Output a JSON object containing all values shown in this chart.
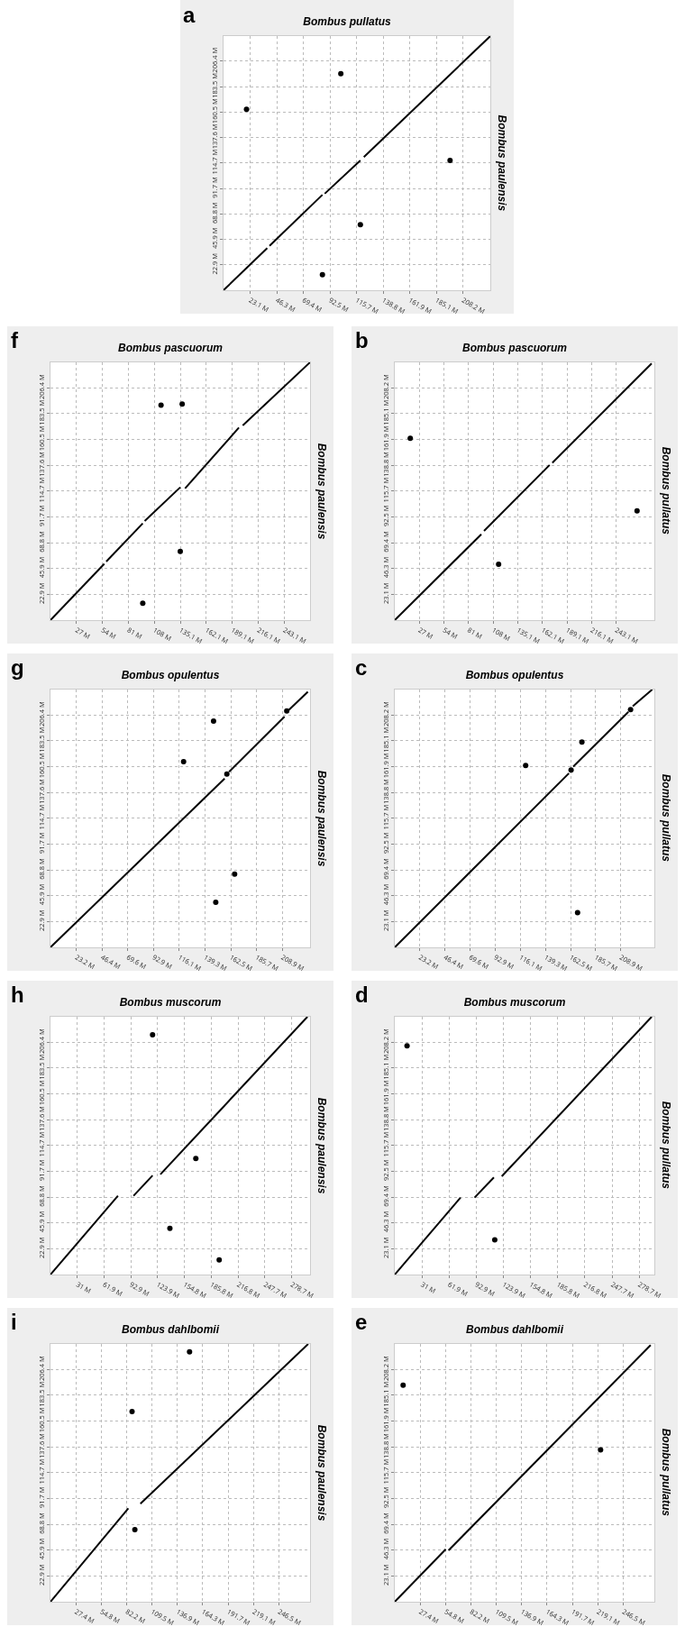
{
  "chart_data": [
    {
      "type": "line",
      "title": "Bombus pullatus",
      "ylabel": "Bombus paulensis",
      "annotations": [
        "a"
      ],
      "grid": true,
      "line_style": "solid",
      "xlim": [
        0,
        232
      ],
      "ylim": [
        0,
        229
      ],
      "xticks": [
        {
          "value": 23.1,
          "label": "23.1 M"
        },
        {
          "value": 46.3,
          "label": "46.3 M"
        },
        {
          "value": 69.4,
          "label": "69.4 M"
        },
        {
          "value": 92.5,
          "label": "92.5 M"
        },
        {
          "value": 115.7,
          "label": "115.7 M"
        },
        {
          "value": 138.8,
          "label": "138.8 M"
        },
        {
          "value": 161.9,
          "label": "161.9 M"
        },
        {
          "value": 185.1,
          "label": "185.1 M"
        },
        {
          "value": 208.2,
          "label": "208.2 M"
        }
      ],
      "yticks": [
        {
          "value": 22.9,
          "label": "22.9 M"
        },
        {
          "value": 45.9,
          "label": "45.9 M"
        },
        {
          "value": 68.8,
          "label": "68.8 M"
        },
        {
          "value": 91.7,
          "label": "91.7 M"
        },
        {
          "value": 114.7,
          "label": "114.7 M"
        },
        {
          "value": 137.6,
          "label": "137.6 M"
        },
        {
          "value": 160.5,
          "label": "160.5 M"
        },
        {
          "value": 183.5,
          "label": "183.5 M"
        },
        {
          "value": 206.4,
          "label": "206.4 M"
        }
      ],
      "series": [
        {
          "color": "#000000",
          "x": [
            0,
            38,
            38.5,
            40,
            86,
            86.5,
            88,
            119,
            120,
            122,
            232
          ],
          "values": [
            0,
            38,
            null,
            40,
            86,
            null,
            87,
            117,
            null,
            120,
            229
          ]
        },
        {
          "type": "scatter",
          "marker": "circle",
          "color": "#000000",
          "x": [
            102,
            20,
            119,
            197,
            86
          ],
          "values": [
            195,
            163,
            59,
            117,
            14
          ]
        }
      ]
    },
    {
      "type": "line",
      "title": "Bombus pascuorum",
      "ylabel": "Bombus paulensis",
      "annotations": [
        "f"
      ],
      "grid": true,
      "line_style": "solid",
      "xlim": [
        0,
        270
      ],
      "ylim": [
        0,
        229
      ],
      "xticks": [
        {
          "value": 27,
          "label": "27 M"
        },
        {
          "value": 54,
          "label": "54 M"
        },
        {
          "value": 81,
          "label": "81 M"
        },
        {
          "value": 108,
          "label": "108 M"
        },
        {
          "value": 135.1,
          "label": "135.1 M"
        },
        {
          "value": 162.1,
          "label": "162.1 M"
        },
        {
          "value": 189.1,
          "label": "189.1 M"
        },
        {
          "value": 216.1,
          "label": "216.1 M"
        },
        {
          "value": 243.1,
          "label": "243.1 M"
        }
      ],
      "yticks": [
        {
          "value": 22.9,
          "label": "22.9 M"
        },
        {
          "value": 45.9,
          "label": "45.9 M"
        },
        {
          "value": 68.8,
          "label": "68.8 M"
        },
        {
          "value": 91.7,
          "label": "91.7 M"
        },
        {
          "value": 114.7,
          "label": "114.7 M"
        },
        {
          "value": 137.6,
          "label": "137.6 M"
        },
        {
          "value": 160.5,
          "label": "160.5 M"
        },
        {
          "value": 183.5,
          "label": "183.5 M"
        },
        {
          "value": 206.4,
          "label": "206.4 M"
        }
      ],
      "series": [
        {
          "color": "#000000",
          "x": [
            0,
            56,
            57,
            58,
            96,
            97,
            98,
            135,
            136,
            140,
            196,
            197,
            200,
            270
          ],
          "values": [
            0,
            50,
            null,
            52,
            86,
            null,
            88,
            118,
            null,
            117,
            171,
            null,
            173,
            229
          ]
        },
        {
          "type": "scatter",
          "marker": "circle",
          "color": "#000000",
          "x": [
            115,
            137,
            135,
            96
          ],
          "values": [
            191,
            192,
            61,
            15
          ]
        }
      ]
    },
    {
      "type": "line",
      "title": "Bombus pascuorum",
      "ylabel": "Bombus pullatus",
      "annotations": [
        "b"
      ],
      "grid": true,
      "line_style": "solid",
      "xlim": [
        0,
        285
      ],
      "ylim": [
        0,
        231
      ],
      "xticks": [
        {
          "value": 27,
          "label": "27 M"
        },
        {
          "value": 54,
          "label": "54 M"
        },
        {
          "value": 81,
          "label": "81 M"
        },
        {
          "value": 108,
          "label": "108 M"
        },
        {
          "value": 135.1,
          "label": "135.1 M"
        },
        {
          "value": 162.1,
          "label": "162.1 M"
        },
        {
          "value": 189.1,
          "label": "189.1 M"
        },
        {
          "value": 216.1,
          "label": "216.1 M"
        },
        {
          "value": 243.1,
          "label": "243.1 M"
        }
      ],
      "yticks": [
        {
          "value": 23.1,
          "label": "23.1 M"
        },
        {
          "value": 46.3,
          "label": "46.3 M"
        },
        {
          "value": 69.4,
          "label": "69.4 M"
        },
        {
          "value": 92.5,
          "label": "92.5 M"
        },
        {
          "value": 115.7,
          "label": "115.7 M"
        },
        {
          "value": 138.8,
          "label": "138.8 M"
        },
        {
          "value": 161.9,
          "label": "161.9 M"
        },
        {
          "value": 185.1,
          "label": "185.1 M"
        },
        {
          "value": 208.2,
          "label": "208.2 M"
        }
      ],
      "series": [
        {
          "color": "#000000",
          "x": [
            0,
            95,
            96,
            98,
            170,
            171,
            173,
            282
          ],
          "values": [
            0,
            77,
            null,
            80,
            139,
            null,
            141,
            230
          ]
        },
        {
          "type": "scatter",
          "marker": "circle",
          "color": "#000000",
          "x": [
            17,
            114,
            266
          ],
          "values": [
            163,
            50,
            98
          ]
        }
      ]
    },
    {
      "type": "line",
      "title": "Bombus opulentus",
      "ylabel": "Bombus paulensis",
      "annotations": [
        "g"
      ],
      "grid": true,
      "line_style": "solid",
      "xlim": [
        0,
        234
      ],
      "ylim": [
        0,
        229
      ],
      "xticks": [
        {
          "value": 23.2,
          "label": "23.2 M"
        },
        {
          "value": 46.4,
          "label": "46.4 M"
        },
        {
          "value": 69.6,
          "label": "69.6 M"
        },
        {
          "value": 92.9,
          "label": "92.9 M"
        },
        {
          "value": 116.1,
          "label": "116.1 M"
        },
        {
          "value": 139.3,
          "label": "139.3 M"
        },
        {
          "value": 162.5,
          "label": "162.5 M"
        },
        {
          "value": 185.7,
          "label": "185.7 M"
        },
        {
          "value": 208.9,
          "label": "208.9 M"
        }
      ],
      "yticks": [
        {
          "value": 22.9,
          "label": "22.9 M"
        },
        {
          "value": 45.9,
          "label": "45.9 M"
        },
        {
          "value": 68.8,
          "label": "68.8 M"
        },
        {
          "value": 91.7,
          "label": "91.7 M"
        },
        {
          "value": 114.7,
          "label": "114.7 M"
        },
        {
          "value": 137.6,
          "label": "137.6 M"
        },
        {
          "value": 160.5,
          "label": "160.5 M"
        },
        {
          "value": 183.5,
          "label": "183.5 M"
        },
        {
          "value": 206.4,
          "label": "206.4 M"
        }
      ],
      "series": [
        {
          "color": "#000000",
          "x": [
            0,
            157,
            158,
            161,
            211,
            212,
            215,
            232
          ],
          "values": [
            0,
            150,
            null,
            156,
            205,
            null,
            211,
            227
          ]
        },
        {
          "type": "scatter",
          "marker": "circle",
          "color": "#000000",
          "x": [
            147,
            120,
            166,
            149,
            213,
            159
          ],
          "values": [
            201,
            165,
            65,
            40,
            210,
            154
          ]
        }
      ]
    },
    {
      "type": "line",
      "title": "Bombus opulentus",
      "ylabel": "Bombus pullatus",
      "annotations": [
        "c"
      ],
      "grid": true,
      "line_style": "solid",
      "xlim": [
        0,
        240
      ],
      "ylim": [
        0,
        231
      ],
      "xticks": [
        {
          "value": 23.2,
          "label": "23.2 M"
        },
        {
          "value": 46.4,
          "label": "46.4 M"
        },
        {
          "value": 69.6,
          "label": "69.6 M"
        },
        {
          "value": 92.9,
          "label": "92.9 M"
        },
        {
          "value": 116.1,
          "label": "116.1 M"
        },
        {
          "value": 139.3,
          "label": "139.3 M"
        },
        {
          "value": 162.5,
          "label": "162.5 M"
        },
        {
          "value": 185.7,
          "label": "185.7 M"
        },
        {
          "value": 208.9,
          "label": "208.9 M"
        }
      ],
      "yticks": [
        {
          "value": 23.1,
          "label": "23.1 M"
        },
        {
          "value": 46.3,
          "label": "46.3 M"
        },
        {
          "value": 69.4,
          "label": "69.4 M"
        },
        {
          "value": 92.5,
          "label": "92.5 M"
        },
        {
          "value": 115.7,
          "label": "115.7 M"
        },
        {
          "value": 138.8,
          "label": "138.8 M"
        },
        {
          "value": 161.9,
          "label": "161.9 M"
        },
        {
          "value": 185.1,
          "label": "185.1 M"
        },
        {
          "value": 208.2,
          "label": "208.2 M"
        }
      ],
      "series": [
        {
          "color": "#000000",
          "x": [
            0,
            161,
            162,
            165,
            216,
            217,
            220,
            238
          ],
          "values": [
            0,
            156,
            null,
            162,
            211,
            null,
            216,
            231
          ]
        },
        {
          "type": "scatter",
          "marker": "circle",
          "color": "#000000",
          "x": [
            173,
            121,
            169,
            218,
            163
          ],
          "values": [
            184,
            163,
            31,
            213,
            159
          ]
        }
      ]
    },
    {
      "type": "line",
      "title": "Bombus muscorum",
      "ylabel": "Bombus paulensis",
      "annotations": [
        "h"
      ],
      "grid": true,
      "line_style": "solid",
      "xlim": [
        0,
        300
      ],
      "ylim": [
        0,
        229
      ],
      "xticks": [
        {
          "value": 31,
          "label": "31 M"
        },
        {
          "value": 61.9,
          "label": "61.9 M"
        },
        {
          "value": 92.9,
          "label": "92.9 M"
        },
        {
          "value": 123.9,
          "label": "123.9 M"
        },
        {
          "value": 154.8,
          "label": "154.8 M"
        },
        {
          "value": 185.8,
          "label": "185.8 M"
        },
        {
          "value": 216.8,
          "label": "216.8 M"
        },
        {
          "value": 247.7,
          "label": "247.7 M"
        },
        {
          "value": 278.7,
          "label": "278.7 M"
        }
      ],
      "yticks": [
        {
          "value": 22.9,
          "label": "22.9 M"
        },
        {
          "value": 45.9,
          "label": "45.9 M"
        },
        {
          "value": 68.8,
          "label": "68.8 M"
        },
        {
          "value": 91.7,
          "label": "91.7 M"
        },
        {
          "value": 114.7,
          "label": "114.7 M"
        },
        {
          "value": 137.6,
          "label": "137.6 M"
        },
        {
          "value": 160.5,
          "label": "160.5 M"
        },
        {
          "value": 183.5,
          "label": "183.5 M"
        },
        {
          "value": 206.4,
          "label": "206.4 M"
        }
      ],
      "series": [
        {
          "color": "#000000",
          "x": [
            0,
            78,
            79,
            96,
            118,
            119,
            127,
            297
          ],
          "values": [
            0,
            70,
            null,
            70,
            88,
            null,
            89,
            229
          ]
        },
        {
          "type": "scatter",
          "marker": "circle",
          "color": "#000000",
          "x": [
            118,
            138,
            168,
            195
          ],
          "values": [
            213,
            41,
            103,
            13
          ]
        }
      ]
    },
    {
      "type": "line",
      "title": "Bombus muscorum",
      "ylabel": "Bombus pullatus",
      "annotations": [
        "d"
      ],
      "grid": true,
      "line_style": "solid",
      "xlim": [
        0,
        296
      ],
      "ylim": [
        0,
        231
      ],
      "xticks": [
        {
          "value": 31,
          "label": "31 M"
        },
        {
          "value": 61.9,
          "label": "61.9 M"
        },
        {
          "value": 92.9,
          "label": "92.9 M"
        },
        {
          "value": 123.9,
          "label": "123.9 M"
        },
        {
          "value": 154.8,
          "label": "154.8 M"
        },
        {
          "value": 185.8,
          "label": "185.8 M"
        },
        {
          "value": 216.8,
          "label": "216.8 M"
        },
        {
          "value": 247.7,
          "label": "247.7 M"
        },
        {
          "value": 278.7,
          "label": "278.7 M"
        }
      ],
      "yticks": [
        {
          "value": 23.1,
          "label": "23.1 M"
        },
        {
          "value": 46.3,
          "label": "46.3 M"
        },
        {
          "value": 69.4,
          "label": "69.4 M"
        },
        {
          "value": 92.5,
          "label": "92.5 M"
        },
        {
          "value": 115.7,
          "label": "115.7 M"
        },
        {
          "value": 138.8,
          "label": "138.8 M"
        },
        {
          "value": 161.9,
          "label": "161.9 M"
        },
        {
          "value": 185.1,
          "label": "185.1 M"
        },
        {
          "value": 208.2,
          "label": "208.2 M"
        }
      ],
      "series": [
        {
          "color": "#000000",
          "x": [
            0,
            75,
            76,
            91,
            113,
            114,
            122,
            293
          ],
          "values": [
            0,
            69,
            null,
            69,
            87,
            null,
            88,
            231
          ]
        },
        {
          "type": "scatter",
          "marker": "circle",
          "color": "#000000",
          "x": [
            14,
            114
          ],
          "values": [
            205,
            31
          ]
        }
      ]
    },
    {
      "type": "line",
      "title": "Bombus dahlbomii",
      "ylabel": "Bombus paulensis",
      "annotations": [
        "i"
      ],
      "grid": true,
      "line_style": "solid",
      "xlim": [
        0,
        280
      ],
      "ylim": [
        0,
        229
      ],
      "xticks": [
        {
          "value": 27.4,
          "label": "27.4 M"
        },
        {
          "value": 54.8,
          "label": "54.8 M"
        },
        {
          "value": 82.2,
          "label": "82.2 M"
        },
        {
          "value": 109.5,
          "label": "109.5 M"
        },
        {
          "value": 136.9,
          "label": "136.9 M"
        },
        {
          "value": 164.3,
          "label": "164.3 M"
        },
        {
          "value": 191.7,
          "label": "191.7 M"
        },
        {
          "value": 219.1,
          "label": "219.1 M"
        },
        {
          "value": 246.5,
          "label": "246.5 M"
        }
      ],
      "yticks": [
        {
          "value": 22.9,
          "label": "22.9 M"
        },
        {
          "value": 45.9,
          "label": "45.9 M"
        },
        {
          "value": 68.8,
          "label": "68.8 M"
        },
        {
          "value": 91.7,
          "label": "91.7 M"
        },
        {
          "value": 114.7,
          "label": "114.7 M"
        },
        {
          "value": 137.6,
          "label": "137.6 M"
        },
        {
          "value": 160.5,
          "label": "160.5 M"
        },
        {
          "value": 183.5,
          "label": "183.5 M"
        },
        {
          "value": 206.4,
          "label": "206.4 M"
        }
      ],
      "series": [
        {
          "color": "#000000",
          "x": [
            0,
            84,
            85,
            97,
            278
          ],
          "values": [
            0,
            83,
            null,
            87,
            229
          ]
        },
        {
          "type": "scatter",
          "marker": "circle",
          "color": "#000000",
          "x": [
            88,
            91,
            150
          ],
          "values": [
            169,
            64,
            222
          ]
        }
      ]
    },
    {
      "type": "line",
      "title": "Bombus dahlbomii",
      "ylabel": "Bombus pullatus",
      "annotations": [
        "e"
      ],
      "grid": true,
      "line_style": "solid",
      "xlim": [
        0,
        280
      ],
      "ylim": [
        0,
        231
      ],
      "xticks": [
        {
          "value": 27.4,
          "label": "27.4 M"
        },
        {
          "value": 54.8,
          "label": "54.8 M"
        },
        {
          "value": 82.2,
          "label": "82.2 M"
        },
        {
          "value": 109.5,
          "label": "109.5 M"
        },
        {
          "value": 136.9,
          "label": "136.9 M"
        },
        {
          "value": 164.3,
          "label": "164.3 M"
        },
        {
          "value": 191.7,
          "label": "191.7 M"
        },
        {
          "value": 219.1,
          "label": "219.1 M"
        },
        {
          "value": 246.5,
          "label": "246.5 M"
        }
      ],
      "yticks": [
        {
          "value": 23.1,
          "label": "23.1 M"
        },
        {
          "value": 46.3,
          "label": "46.3 M"
        },
        {
          "value": 69.4,
          "label": "69.4 M"
        },
        {
          "value": 92.5,
          "label": "92.5 M"
        },
        {
          "value": 115.7,
          "label": "115.7 M"
        },
        {
          "value": 138.8,
          "label": "138.8 M"
        },
        {
          "value": 161.9,
          "label": "161.9 M"
        },
        {
          "value": 185.1,
          "label": "185.1 M"
        },
        {
          "value": 208.2,
          "label": "208.2 M"
        }
      ],
      "series": [
        {
          "color": "#000000",
          "x": [
            0,
            55,
            56,
            58,
            276
          ],
          "values": [
            0,
            47,
            null,
            46,
            230
          ]
        },
        {
          "type": "scatter",
          "marker": "circle",
          "color": "#000000",
          "x": [
            9,
            222
          ],
          "values": [
            194,
            136
          ]
        }
      ]
    }
  ]
}
